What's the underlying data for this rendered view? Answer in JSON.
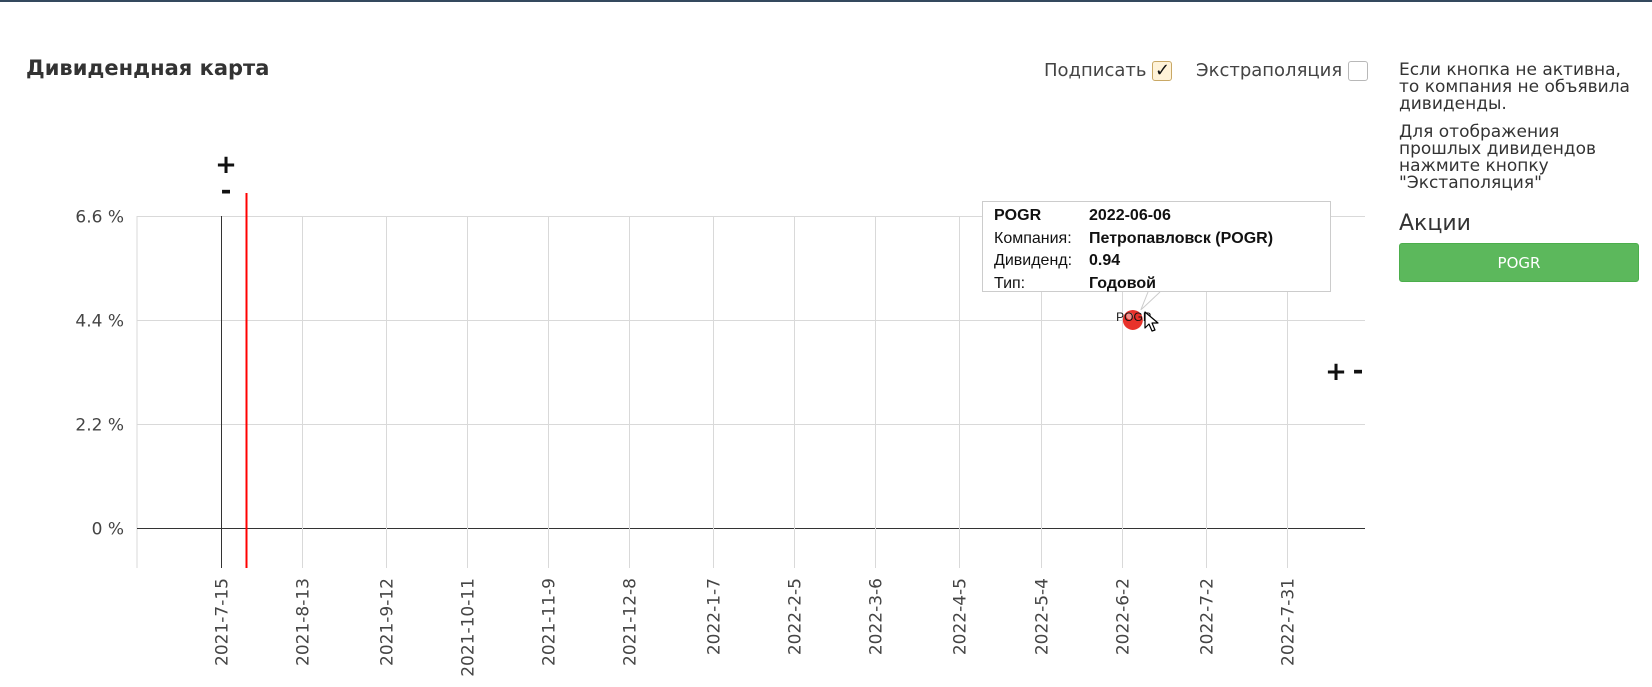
{
  "page": {
    "title": "Дивидендная карта"
  },
  "options": {
    "sign_label": "Подписать",
    "sign_checked": true,
    "extrapolation_label": "Экстраполяция",
    "extrapolation_checked": false
  },
  "side_panel": {
    "note_inactive": "Если кнопка не активна, то компания не объявила дивиденды.",
    "note_past": "Для отображения прошлых дивидендов нажмите кнопку \"Экстаполяция\"",
    "shares_title": "Акции",
    "share_buttons": [
      "POGR"
    ]
  },
  "chart_data": {
    "type": "scatter",
    "title": "",
    "xlabel": "",
    "ylabel": "",
    "x_ticks": [
      "2021-7-15",
      "2021-8-13",
      "2021-9-12",
      "2021-10-11",
      "2021-11-9",
      "2021-12-8",
      "2022-1-7",
      "2022-2-5",
      "2022-3-6",
      "2022-4-5",
      "2022-5-4",
      "2022-6-2",
      "2022-7-2",
      "2022-7-31"
    ],
    "x_range": [
      "2021-6-15",
      "2022-8-28"
    ],
    "y_ticks": [
      0,
      2.2,
      4.4,
      6.6
    ],
    "y_tick_labels": [
      "0 %",
      "2.2 %",
      "4.4 %",
      "6.6 %"
    ],
    "ylim": [
      -0.85,
      6.6
    ],
    "grid": true,
    "today_marker_date": "2021-7-24",
    "zoom_controls": [
      "+",
      "-"
    ],
    "points": [
      {
        "label": "POGR",
        "date": "2022-06-06",
        "yield_pct": 4.4,
        "color": "#e8322b"
      }
    ]
  },
  "tooltip": {
    "ticker": "POGR",
    "date": "2022-06-06",
    "company_label": "Компания:",
    "company_value": "Петропавловск (POGR)",
    "dividend_label": "Дивиденд:",
    "dividend_value": "0.94",
    "type_label": "Тип:",
    "type_value": "Годовой"
  },
  "colors": {
    "grid": "#d9d9d9",
    "today_marker": "#ff0000",
    "share_button": "#5cb85c",
    "header_border": "#34495e"
  }
}
